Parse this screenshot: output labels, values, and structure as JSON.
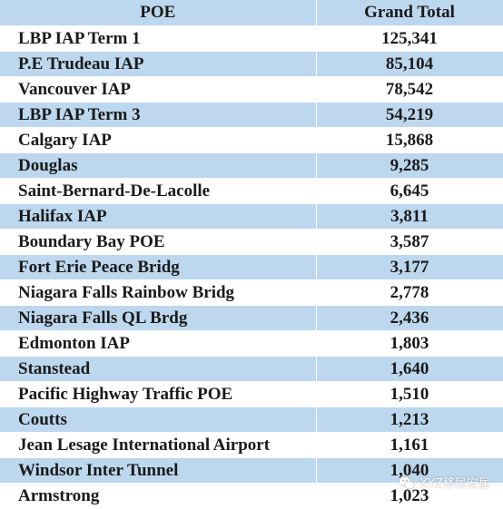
{
  "table": {
    "header_bg": "#bdd7ee",
    "row_bgs": [
      "#ffffff",
      "#bdd7ee"
    ],
    "columns": [
      "POE",
      "Grand Total"
    ],
    "rows": [
      {
        "poe": "LBP IAP Term 1",
        "total": "125,341"
      },
      {
        "poe": "P.E Trudeau IAP",
        "total": "85,104"
      },
      {
        "poe": "Vancouver IAP",
        "total": "78,542"
      },
      {
        "poe": "LBP IAP Term 3",
        "total": "54,219"
      },
      {
        "poe": "Calgary IAP",
        "total": "15,868"
      },
      {
        "poe": "Douglas",
        "total": "9,285"
      },
      {
        "poe": "Saint-Bernard-De-Lacolle",
        "total": "6,645"
      },
      {
        "poe": "Halifax IAP",
        "total": "3,811"
      },
      {
        "poe": "Boundary Bay POE",
        "total": "3,587"
      },
      {
        "poe": "Fort Erie Peace Bridg",
        "total": "3,177"
      },
      {
        "poe": "Niagara Falls Rainbow Bridg",
        "total": "2,778"
      },
      {
        "poe": "Niagara Falls QL Brdg",
        "total": "2,436"
      },
      {
        "poe": "Edmonton IAP",
        "total": "1,803"
      },
      {
        "poe": "Stanstead",
        "total": "1,640"
      },
      {
        "poe": "Pacific Highway Traffic POE",
        "total": "1,510"
      },
      {
        "poe": "Coutts",
        "total": "1,213"
      },
      {
        "poe": "Jean Lesage International Airport",
        "total": "1,161"
      },
      {
        "poe": "Windsor Inter Tunnel",
        "total": "1,040"
      },
      {
        "poe": "Armstrong",
        "total": "1,023"
      }
    ]
  },
  "watermark": {
    "text": "XYZ移民安居",
    "icon": "wechat-icon"
  }
}
